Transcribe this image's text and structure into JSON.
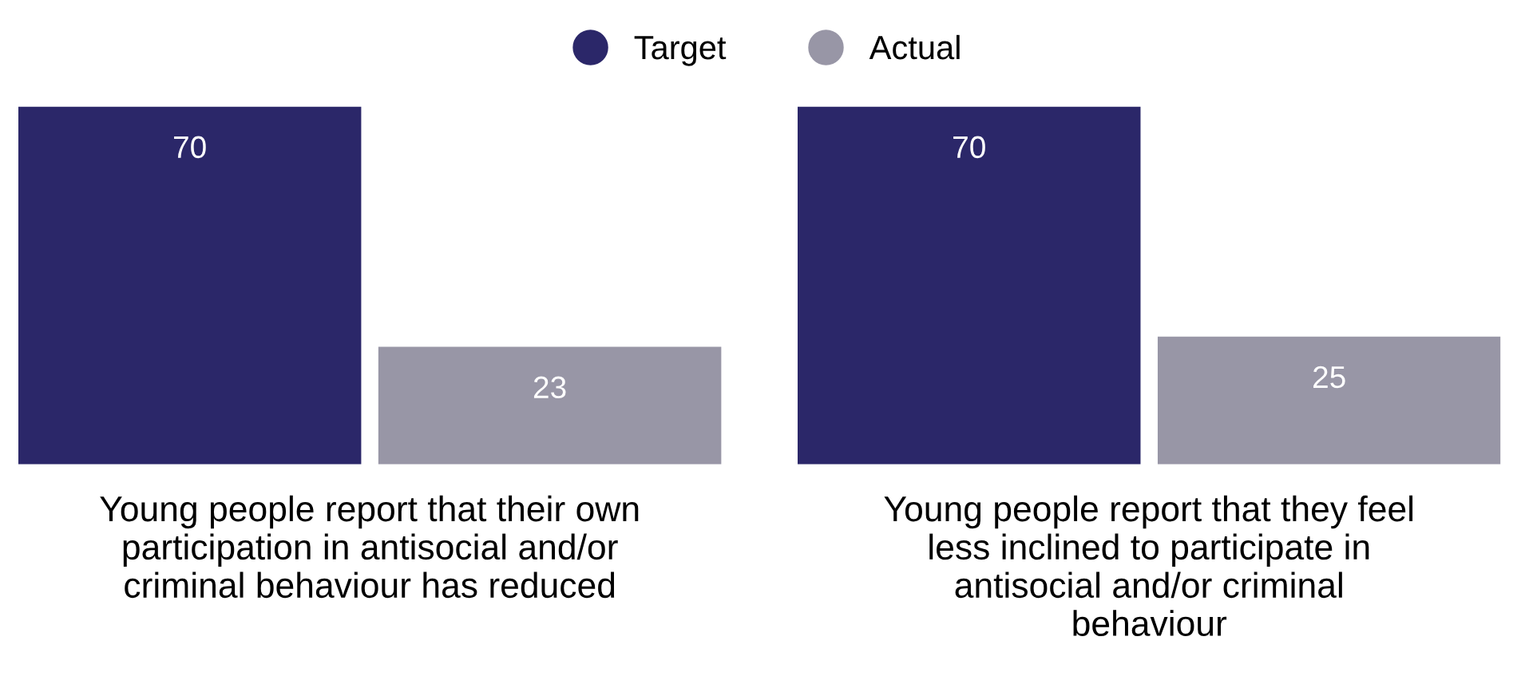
{
  "chart_data": {
    "type": "bar",
    "categories": [
      "Young people report that their own\nparticipation in antisocial and/or\ncriminal behaviour has reduced",
      "Young people report that they feel\nless inclined to participate in\nantisocial and/or criminal\nbehaviour"
    ],
    "series": [
      {
        "name": "Target",
        "color": "#2b2769",
        "values": [
          70,
          70
        ]
      },
      {
        "name": "Actual",
        "color": "#9896a6",
        "values": [
          23,
          25
        ]
      }
    ],
    "ylim": [
      0,
      70
    ],
    "data_labels": true,
    "legend": "top",
    "grid": false,
    "tick_labels": "x"
  }
}
